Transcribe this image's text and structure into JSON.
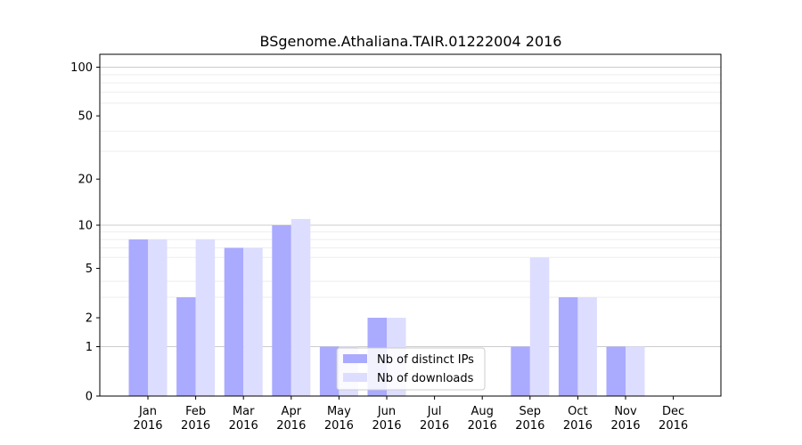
{
  "chart_data": {
    "type": "bar",
    "title": "BSgenome.Athaliana.TAIR.01222004 2016",
    "xlabel": "",
    "ylabel": "",
    "yscale": "log1p",
    "ylim": [
      0,
      120
    ],
    "yticks": [
      0,
      1,
      2,
      5,
      10,
      20,
      50,
      100
    ],
    "ytick_labels": [
      "0",
      "1",
      "2",
      "5",
      "10",
      "20",
      "50",
      "100"
    ],
    "categories": [
      [
        "Jan",
        "2016"
      ],
      [
        "Feb",
        "2016"
      ],
      [
        "Mar",
        "2016"
      ],
      [
        "Apr",
        "2016"
      ],
      [
        "May",
        "2016"
      ],
      [
        "Jun",
        "2016"
      ],
      [
        "Jul",
        "2016"
      ],
      [
        "Aug",
        "2016"
      ],
      [
        "Sep",
        "2016"
      ],
      [
        "Oct",
        "2016"
      ],
      [
        "Nov",
        "2016"
      ],
      [
        "Dec",
        "2016"
      ]
    ],
    "series": [
      {
        "name": "Nb of distinct IPs",
        "color": "#aaaaff",
        "values": [
          8,
          3,
          7,
          10,
          1,
          2,
          0,
          0,
          1,
          3,
          1,
          0
        ]
      },
      {
        "name": "Nb of downloads",
        "color": "#ddddff",
        "values": [
          8,
          8,
          7,
          11,
          1,
          2,
          0,
          0,
          6,
          3,
          1,
          0
        ]
      }
    ],
    "grid": true,
    "legend": "bottom-center"
  }
}
